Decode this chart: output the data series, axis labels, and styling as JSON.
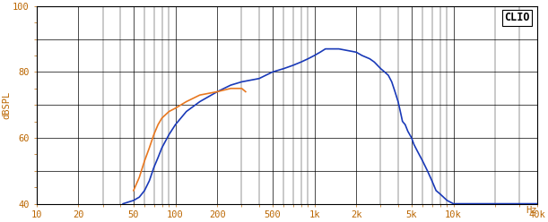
{
  "title": "CLIO",
  "ylabel": "dBSPL",
  "xlabel_hz": "Hz",
  "x_min": 10,
  "x_max": 40000,
  "y_min": 40,
  "y_max": 100,
  "yticks": [
    40,
    50,
    60,
    70,
    80,
    90,
    100
  ],
  "ytick_labels": [
    "40",
    "",
    "60",
    "",
    "80",
    "",
    "100"
  ],
  "xticks": [
    10,
    20,
    50,
    100,
    200,
    500,
    1000,
    2000,
    5000,
    10000,
    40000
  ],
  "xtick_labels": [
    "10",
    "20",
    "50",
    "100",
    "200",
    "500",
    "1k",
    "2k",
    "5k",
    "10k",
    "40k"
  ],
  "background_color": "#ffffff",
  "grid_color": "#000000",
  "blue_color": "#1a3ab8",
  "orange_color": "#e87820",
  "blue_curve": {
    "freq": [
      42,
      50,
      55,
      60,
      65,
      70,
      75,
      80,
      90,
      100,
      120,
      150,
      200,
      250,
      300,
      400,
      500,
      600,
      700,
      800,
      900,
      1000,
      1100,
      1200,
      1500,
      2000,
      2200,
      2500,
      2700,
      3000,
      3200,
      3400,
      3600,
      3800,
      4000,
      4100,
      4200,
      4300,
      4500,
      4700,
      5000,
      5200,
      5500,
      6000,
      6500,
      7000,
      7500,
      8000,
      9000,
      10000,
      40000
    ],
    "spl": [
      40,
      41,
      42,
      44,
      47,
      51,
      54,
      57,
      61,
      64,
      68,
      71,
      74,
      76,
      77,
      78,
      80,
      81,
      82,
      83,
      84,
      85,
      86,
      87,
      87,
      86,
      85,
      84,
      83,
      81,
      80,
      79,
      77,
      74,
      71,
      69,
      67,
      65,
      64,
      62,
      60,
      58,
      56,
      53,
      50,
      47,
      44,
      43,
      41,
      40,
      40
    ]
  },
  "orange_curve": {
    "freq": [
      50,
      55,
      60,
      65,
      70,
      75,
      80,
      90,
      100,
      120,
      150,
      200,
      250,
      300,
      320
    ],
    "spl": [
      44,
      48,
      53,
      57,
      61,
      64,
      66,
      68,
      69,
      71,
      73,
      74,
      75,
      75,
      74
    ]
  }
}
